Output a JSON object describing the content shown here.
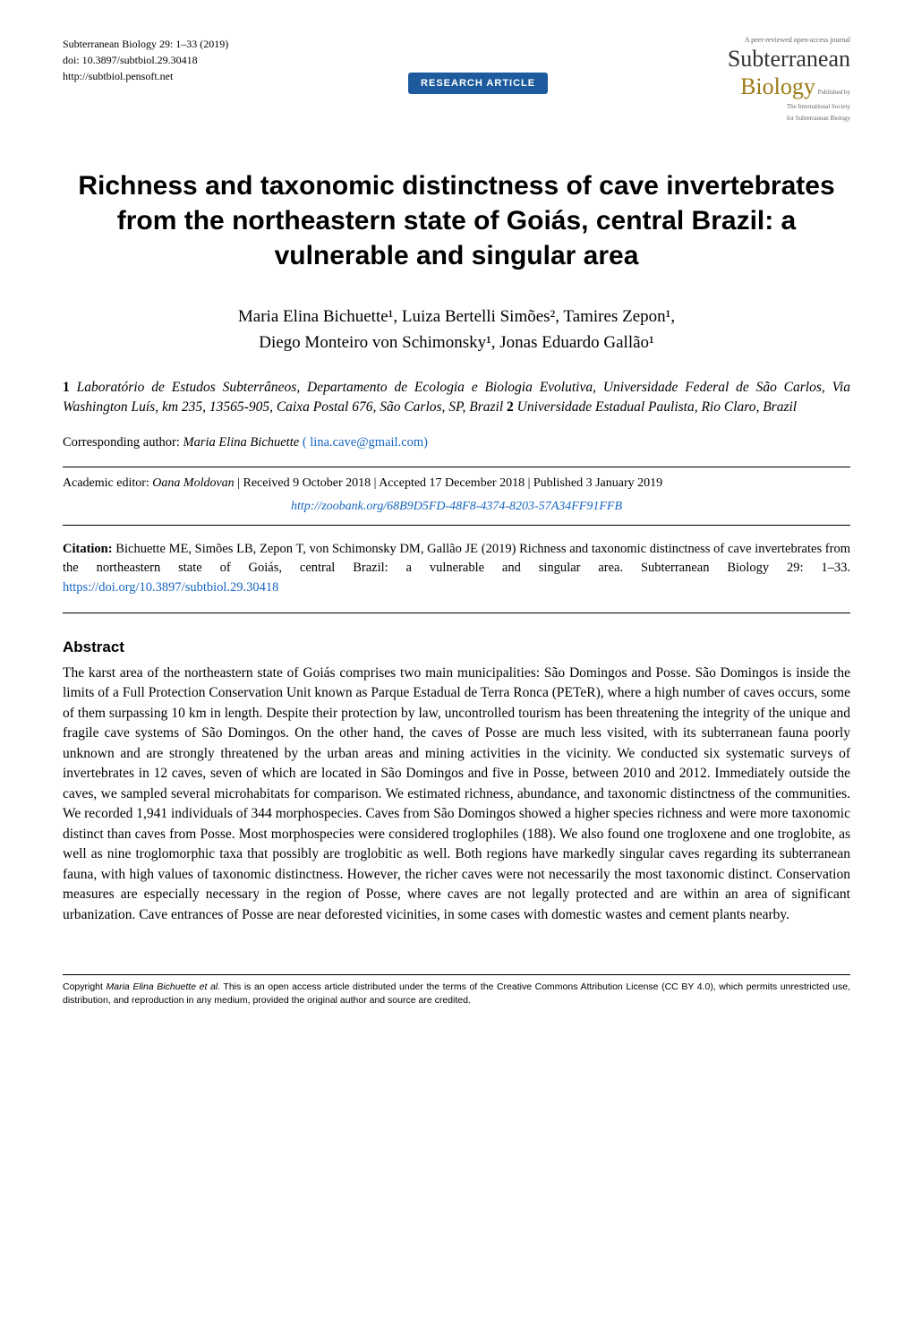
{
  "header": {
    "journal_line": "Subterranean Biology 29: 1–33 (2019)",
    "doi": "doi: 10.3897/subtbiol.29.30418",
    "url": "http://subtbiol.pensoft.net",
    "badge": "RESEARCH ARTICLE",
    "peer_text": "A peer-reviewed open-access journal",
    "name_sub": "Subterranean",
    "name_bio": "Biology",
    "publisher1": "Published by",
    "publisher2": "The International Society",
    "publisher3": "for Subterranean Biology"
  },
  "title": "Richness and taxonomic distinctness of cave invertebrates from the northeastern state of Goiás, central Brazil: a vulnerable and singular area",
  "authors_line1": "Maria Elina Bichuette¹, Luiza Bertelli Simões², Tamires Zepon¹,",
  "authors_line2": "Diego Monteiro von Schimonsky¹, Jonas Eduardo Gallão¹",
  "aff1_num": "1",
  "aff1": " Laboratório de Estudos Subterrâneos, Departamento de Ecologia e Biologia Evolutiva, Universidade Federal de São Carlos, Via Washington Luís, km 235, 13565-905, Caixa Postal 676, São Carlos, SP, Brazil ",
  "aff2_num": "2",
  "aff2": " Universidade Estadual Paulista, Rio Claro, Brazil",
  "corresponding_label": "Corresponding author: ",
  "corresponding_name": "Maria Elina Bichuette",
  "corresponding_email": "( lina.cave@gmail.com)",
  "editor_label": "Academic editor: ",
  "editor_name": "Oana Moldovan",
  "history": " |  Received 9 October 2018  |  Accepted 17 December 2018  |  Published 3 January 2019",
  "zoobank": "http://zoobank.org/68B9D5FD-48F8-4374-8203-57A34FF91FFB",
  "citation_label": "Citation:",
  "citation_text": " Bichuette ME, Simões LB, Zepon T, von Schimonsky DM, Gallão JE (2019) Richness and taxonomic distinctness of cave invertebrates from the northeastern state of Goiás, central Brazil: a vulnerable and singular area. Subterranean Biology 29: 1–33. ",
  "citation_doi": "https://doi.org/10.3897/subtbiol.29.30418",
  "abstract_heading": "Abstract",
  "abstract_body": "The karst area of the northeastern state of Goiás comprises two main municipalities: São Domingos and Posse. São Domingos is inside the limits of a Full Protection Conservation Unit known as Parque Estadual de Terra Ronca (PETeR), where a high number of caves occurs, some of them surpassing 10 km in length. Despite their protection by law, uncontrolled tourism has been threatening the integrity of the unique and fragile cave systems of São Domingos. On the other hand, the caves of Posse are much less visited, with its subterranean fauna poorly unknown and are strongly threatened by the urban areas and mining activities in the vicinity. We conducted six systematic surveys of invertebrates in 12 caves, seven of which are located in São Domingos and five in Posse, between 2010 and 2012. Immediately outside the caves, we sampled several microhabitats for comparison. We estimated richness, abundance, and taxonomic distinctness of the communities. We recorded 1,941 individuals of 344 morphospecies. Caves from São Domingos showed a higher species richness and were more taxonomic distinct than caves from Posse. Most morphospecies were considered troglophiles (188). We also found one trogloxene and one troglobite, as well as nine troglomorphic taxa that possibly are troglobitic as well. Both regions have markedly singular caves regarding its subterranean fauna, with high values of taxonomic distinctness. However, the richer caves were not necessarily the most taxonomic distinct. Conservation measures are especially necessary in the region of Posse, where caves are not legally protected and are within an area of significant urbanization. Cave entrances of Posse are near deforested vicinities, in some cases with domestic wastes and cement plants nearby.",
  "footer_prefix": "Copyright ",
  "footer_author": "Maria Elina Bichuette et al.",
  "footer_text": " This is an open access article distributed under the terms of the Creative Commons Attribution License (CC BY 4.0), which permits unrestricted use, distribution, and reproduction in any medium, provided the original author and source are credited."
}
